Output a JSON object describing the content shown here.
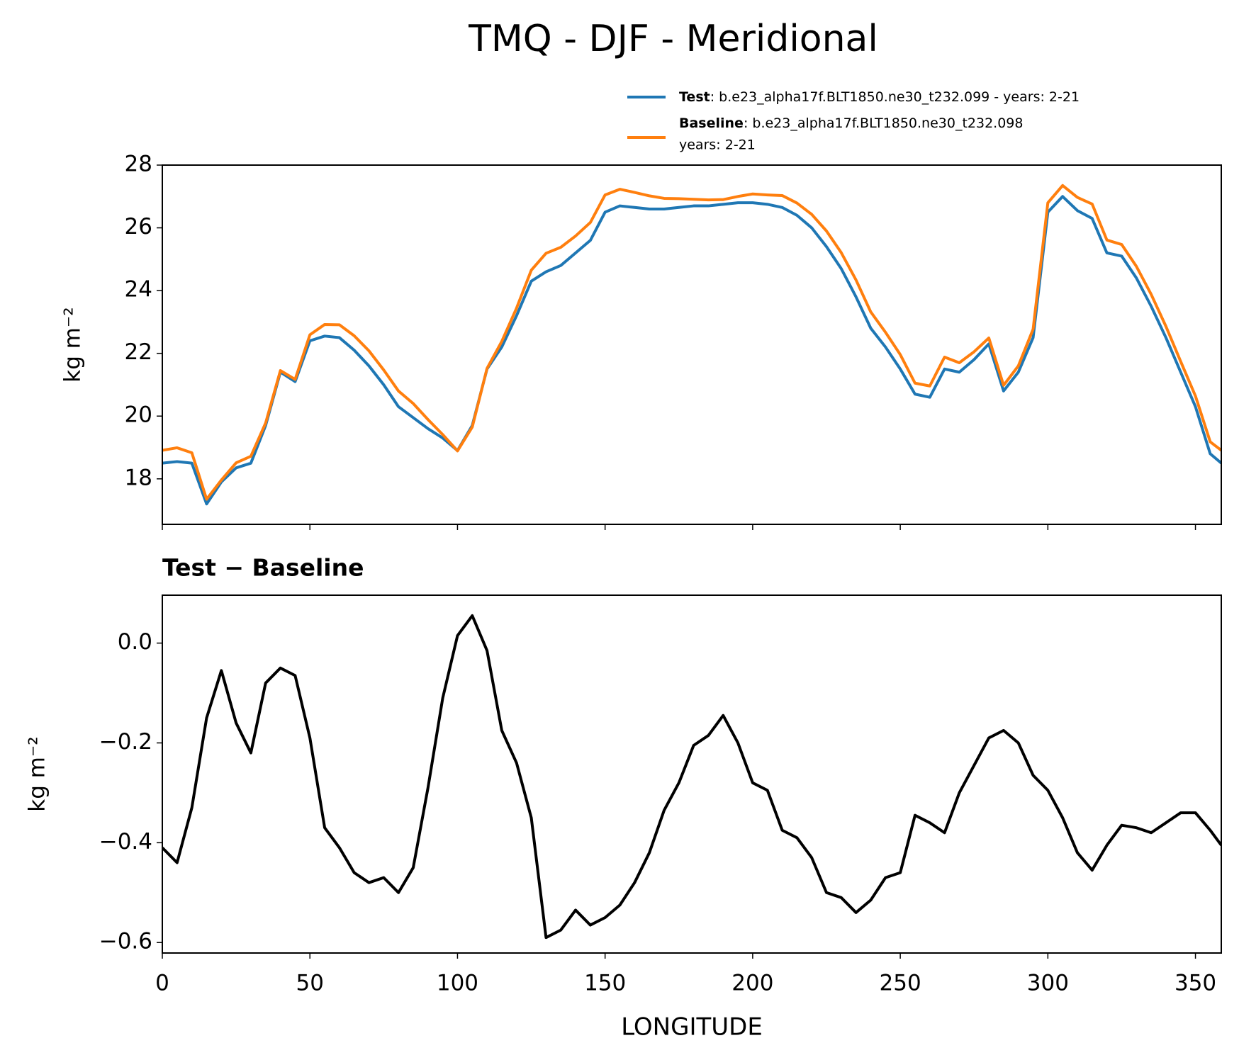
{
  "title": "TMQ - DJF - Meridional",
  "chart_data": [
    {
      "type": "line",
      "ylabel": "kg m⁻²",
      "x": [
        0,
        5,
        10,
        15,
        20,
        25,
        30,
        35,
        40,
        45,
        50,
        55,
        60,
        65,
        70,
        75,
        80,
        85,
        90,
        95,
        100,
        105,
        110,
        115,
        120,
        125,
        130,
        135,
        140,
        145,
        150,
        155,
        160,
        165,
        170,
        175,
        180,
        185,
        190,
        195,
        200,
        205,
        210,
        215,
        220,
        225,
        230,
        235,
        240,
        245,
        250,
        255,
        260,
        265,
        270,
        275,
        280,
        285,
        290,
        295,
        300,
        305,
        310,
        315,
        320,
        325,
        330,
        335,
        340,
        345,
        350,
        355,
        358.75
      ],
      "series": [
        {
          "name": "Test",
          "description": [
            ": b.e23_alpha17f.BLT1850.ne30_t232.099 - years: 2-21"
          ],
          "color": "#1f77b4",
          "values": [
            18.5,
            18.55,
            18.5,
            17.2,
            17.9,
            18.35,
            18.5,
            19.7,
            21.4,
            21.1,
            22.4,
            22.55,
            22.5,
            22.1,
            21.6,
            21.0,
            20.3,
            19.95,
            19.6,
            19.3,
            18.9,
            19.7,
            21.5,
            22.2,
            23.2,
            24.3,
            24.6,
            24.8,
            25.2,
            25.6,
            26.5,
            26.7,
            26.65,
            26.6,
            26.6,
            26.65,
            26.7,
            26.7,
            26.75,
            26.8,
            26.8,
            26.75,
            26.65,
            26.4,
            26.0,
            25.4,
            24.7,
            23.8,
            22.8,
            22.2,
            21.5,
            20.7,
            20.6,
            21.5,
            21.4,
            21.8,
            22.3,
            20.8,
            21.4,
            22.5,
            26.5,
            27.0,
            26.55,
            26.3,
            25.2,
            25.1,
            24.4,
            23.5,
            22.5,
            21.4,
            20.3,
            18.8,
            18.5
          ]
        },
        {
          "name": "Baseline",
          "description": [
            ": b.e23_alpha17f.BLT1850.ne30_t232.098",
            "years: 2-21"
          ],
          "color": "#ff7f0e",
          "values": [
            18.91,
            18.99,
            18.83,
            17.35,
            17.96,
            18.51,
            18.72,
            19.78,
            21.45,
            21.17,
            22.59,
            22.92,
            22.91,
            22.56,
            22.08,
            21.47,
            20.8,
            20.4,
            19.89,
            19.41,
            18.89,
            19.65,
            21.52,
            22.38,
            23.44,
            24.65,
            25.19,
            25.38,
            25.74,
            26.17,
            27.05,
            27.23,
            27.13,
            27.02,
            26.94,
            26.93,
            26.91,
            26.89,
            26.9,
            27.0,
            27.08,
            27.05,
            27.03,
            26.79,
            26.43,
            25.9,
            25.21,
            24.34,
            23.32,
            22.67,
            21.96,
            21.05,
            20.96,
            21.88,
            21.7,
            22.05,
            22.49,
            20.98,
            21.6,
            22.77,
            26.8,
            27.35,
            26.97,
            26.76,
            25.61,
            25.47,
            24.77,
            23.88,
            22.86,
            21.74,
            20.64,
            19.18,
            18.91
          ]
        }
      ],
      "xlim": [
        0,
        358.75
      ],
      "xticks": [
        0,
        50,
        100,
        150,
        200,
        250,
        300,
        350
      ],
      "ylim": [
        16.55,
        28
      ],
      "yticks": [
        18,
        20,
        22,
        24,
        26,
        28
      ]
    },
    {
      "type": "line",
      "title": "Test − Baseline",
      "xlabel": "LONGITUDE",
      "ylabel": "kg m⁻²",
      "x": [
        0,
        5,
        10,
        15,
        20,
        25,
        30,
        35,
        40,
        45,
        50,
        55,
        60,
        65,
        70,
        75,
        80,
        85,
        90,
        95,
        100,
        105,
        110,
        115,
        120,
        125,
        130,
        135,
        140,
        145,
        150,
        155,
        160,
        165,
        170,
        175,
        180,
        185,
        190,
        195,
        200,
        205,
        210,
        215,
        220,
        225,
        230,
        235,
        240,
        245,
        250,
        255,
        260,
        265,
        270,
        275,
        280,
        285,
        290,
        295,
        300,
        305,
        310,
        315,
        320,
        325,
        330,
        335,
        340,
        345,
        350,
        355,
        358.75
      ],
      "series": [
        {
          "color": "#000000",
          "values": [
            -0.41,
            -0.44,
            -0.33,
            -0.15,
            -0.055,
            -0.16,
            -0.22,
            -0.08,
            -0.05,
            -0.065,
            -0.19,
            -0.37,
            -0.41,
            -0.46,
            -0.48,
            -0.47,
            -0.5,
            -0.45,
            -0.29,
            -0.11,
            0.015,
            0.055,
            -0.015,
            -0.175,
            -0.24,
            -0.35,
            -0.59,
            -0.575,
            -0.535,
            -0.565,
            -0.55,
            -0.525,
            -0.48,
            -0.42,
            -0.335,
            -0.28,
            -0.205,
            -0.185,
            -0.145,
            -0.2,
            -0.28,
            -0.295,
            -0.375,
            -0.39,
            -0.43,
            -0.5,
            -0.51,
            -0.54,
            -0.515,
            -0.47,
            -0.46,
            -0.345,
            -0.36,
            -0.38,
            -0.3,
            -0.245,
            -0.19,
            -0.175,
            -0.2,
            -0.265,
            -0.295,
            -0.35,
            -0.42,
            -0.455,
            -0.405,
            -0.365,
            -0.37,
            -0.38,
            -0.36,
            -0.34,
            -0.34,
            -0.375,
            -0.405
          ]
        }
      ],
      "xlim": [
        0,
        358.75
      ],
      "xticks": [
        0,
        50,
        100,
        150,
        200,
        250,
        300,
        350
      ],
      "ylim": [
        -0.621,
        0.096
      ],
      "yticks": [
        {
          "value": -0.6,
          "label": "−0.6"
        },
        {
          "value": -0.4,
          "label": "−0.4"
        },
        {
          "value": -0.2,
          "label": "−0.2"
        },
        {
          "value": 0,
          "label": "0.0"
        }
      ]
    }
  ]
}
